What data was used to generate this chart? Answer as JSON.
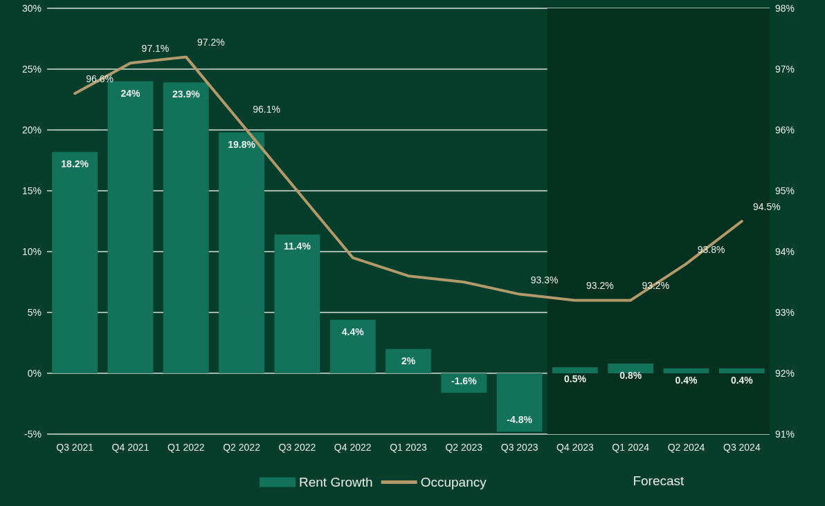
{
  "chart_data": {
    "type": "bar",
    "categories": [
      "Q3 2021",
      "Q4 2021",
      "Q1 2022",
      "Q2 2022",
      "Q3 2022",
      "Q4 2022",
      "Q1 2023",
      "Q2 2023",
      "Q3 2023",
      "Q4 2023",
      "Q1 2024",
      "Q2 2024",
      "Q3 2024"
    ],
    "series": [
      {
        "name": "Rent Growth",
        "color": "#13735a",
        "values": [
          18.2,
          24,
          23.9,
          19.8,
          11.4,
          4.4,
          2,
          -1.6,
          -4.8,
          0.5,
          0.8,
          0.4,
          0.4
        ],
        "value_labels": [
          "18.2%",
          "24%",
          "23.9%",
          "19.8%",
          "11.4%",
          "4.4%",
          "2%",
          "-1.6%",
          "-4.8%",
          "0.5%",
          "0.8%",
          "0.4%",
          "0.4%"
        ]
      },
      {
        "name": "Occupancy",
        "type": "line",
        "axis": "y2",
        "color": "#b39a6b",
        "values": [
          96.6,
          97.1,
          97.2,
          96.1,
          95.0,
          93.9,
          93.6,
          93.5,
          93.3,
          93.2,
          93.2,
          93.8,
          94.5
        ],
        "value_labels": [
          "96.6%",
          "97.1%",
          "97.2%",
          "96.1%",
          null,
          null,
          null,
          null,
          "93.3%",
          "93.2%",
          "93.2%",
          "93.8%",
          "94.5%"
        ]
      }
    ],
    "ylim": [
      -5,
      30
    ],
    "yticks": [
      {
        "value": -5,
        "label": "-5%"
      },
      {
        "value": 0,
        "label": "0%"
      },
      {
        "value": 5,
        "label": "5%"
      },
      {
        "value": 10,
        "label": "10%"
      },
      {
        "value": 15,
        "label": "15%"
      },
      {
        "value": 20,
        "label": "20%"
      },
      {
        "value": 25,
        "label": "25%"
      },
      {
        "value": 30,
        "label": "30%"
      }
    ],
    "y2lim": [
      91,
      98
    ],
    "y2ticks": [
      {
        "value": 91,
        "label": "91%"
      },
      {
        "value": 92,
        "label": "92%"
      },
      {
        "value": 93,
        "label": "93%"
      },
      {
        "value": 94,
        "label": "94%"
      },
      {
        "value": 95,
        "label": "95%"
      },
      {
        "value": 96,
        "label": "96%"
      },
      {
        "value": 97,
        "label": "97%"
      },
      {
        "value": 98,
        "label": "98%"
      }
    ],
    "bands": [
      {
        "axis": "x",
        "from": "Q4 2023",
        "to": "Q3 2024",
        "label": "Forecast",
        "color": "#06301f"
      }
    ],
    "grid": "y",
    "legend": "bottom",
    "marker": "none",
    "line_style": "solid"
  }
}
